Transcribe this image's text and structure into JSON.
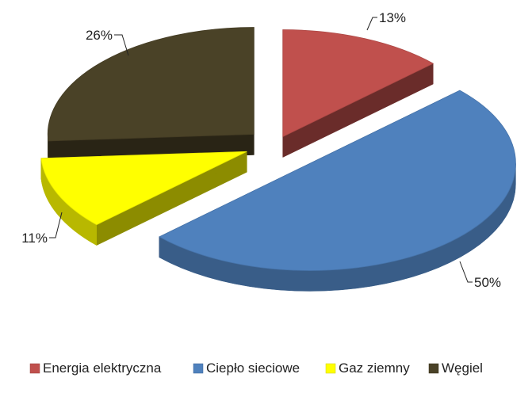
{
  "chart_data": {
    "type": "pie",
    "style": "3d-exploded",
    "slices": [
      {
        "label": "Energia elektryczna",
        "value": 13,
        "display": "13%",
        "color": "#C0504D"
      },
      {
        "label": "Ciepło sieciowe",
        "value": 50,
        "display": "50%",
        "color": "#4F81BD"
      },
      {
        "label": "Gaz ziemny",
        "value": 11,
        "display": "11%",
        "color": "#FFFF00"
      },
      {
        "label": "Węgiel",
        "value": 26,
        "display": "26%",
        "color": "#4A4227"
      }
    ],
    "legend_position": "bottom"
  }
}
